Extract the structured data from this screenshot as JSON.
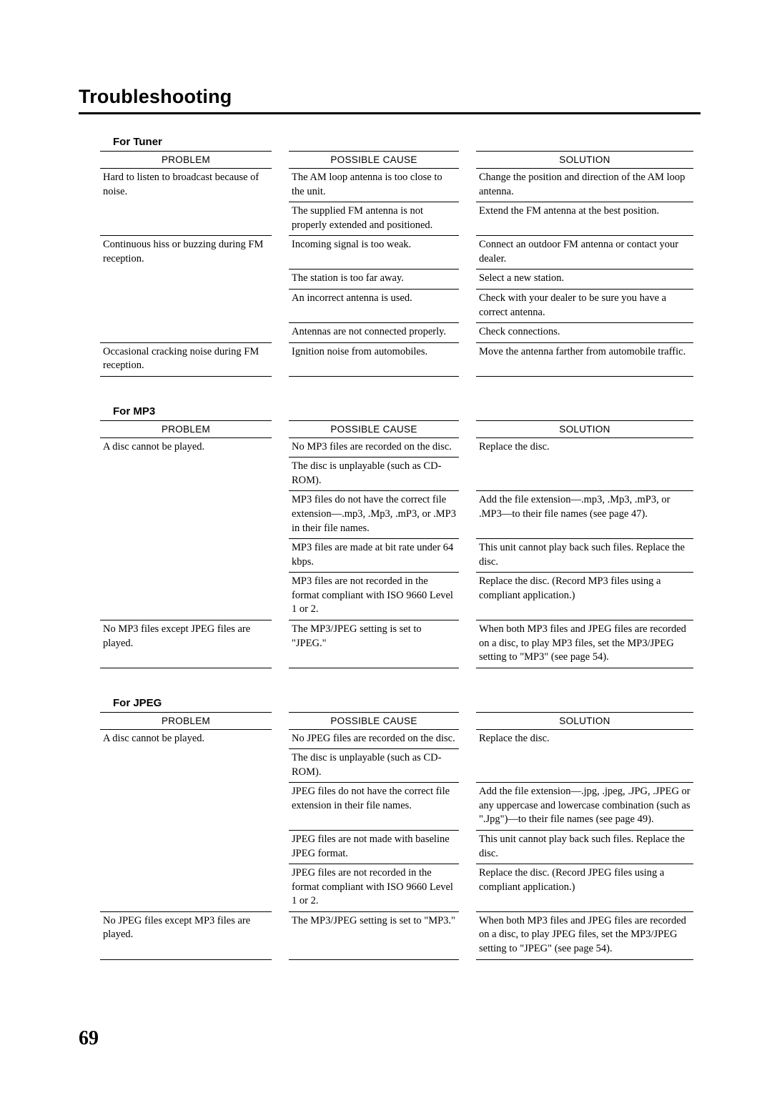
{
  "title": "Troubleshooting",
  "page_number": "69",
  "headers": {
    "problem": "PROBLEM",
    "cause": "POSSIBLE CAUSE",
    "solution": "SOLUTION"
  },
  "tuner": {
    "heading": "For Tuner",
    "rows": [
      {
        "problem": "Hard to listen to broadcast because of noise.",
        "cause": "The AM loop antenna is too close to the unit.",
        "solution": "Change the position and direction of the AM loop antenna."
      },
      {
        "problem": "",
        "cause": "The supplied FM antenna is not properly extended and positioned.",
        "solution": "Extend the FM antenna at the best position."
      },
      {
        "problem": "Continuous hiss or buzzing during FM reception.",
        "cause": "Incoming signal is too weak.",
        "solution": "Connect an outdoor FM antenna or contact your dealer."
      },
      {
        "problem": "",
        "cause": "The station is too far away.",
        "solution": "Select a new station."
      },
      {
        "problem": "",
        "cause": "An incorrect antenna is used.",
        "solution": "Check with your dealer to be sure you have a correct antenna."
      },
      {
        "problem": "",
        "cause": "Antennas are not connected properly.",
        "solution": "Check connections."
      },
      {
        "problem": "Occasional cracking noise during FM reception.",
        "cause": "Ignition noise from automobiles.",
        "solution": "Move the antenna farther from automobile traffic."
      }
    ]
  },
  "mp3": {
    "heading": "For MP3",
    "rows": [
      {
        "problem": "A disc cannot be played.",
        "cause": "No MP3 files are recorded on the disc.",
        "solution": "Replace the disc."
      },
      {
        "problem": "",
        "cause": "The disc is unplayable (such as CD-ROM).",
        "solution": ""
      },
      {
        "problem": "",
        "cause": "MP3 files do not have the correct  file extension—.mp3, .Mp3, .mP3, or .MP3 in their file names.",
        "solution": "Add the file extension—.mp3, .Mp3, .mP3, or .MP3—to their file names (see page 47)."
      },
      {
        "problem": "",
        "cause": "MP3 files are made at bit rate under 64 kbps.",
        "solution": "This unit cannot play back such files. Replace the disc."
      },
      {
        "problem": "",
        "cause": "MP3 files are not recorded in the format compliant with ISO 9660 Level 1 or 2.",
        "solution": "Replace the disc. (Record MP3 files using a compliant application.)"
      },
      {
        "problem": "No MP3 files except JPEG files are played.",
        "cause": "The MP3/JPEG setting is set to \"JPEG.\"",
        "solution": "When both MP3 files and JPEG files are recorded on a disc, to play MP3 files, set the MP3/JPEG setting to \"MP3\" (see page 54)."
      }
    ]
  },
  "jpeg": {
    "heading": "For JPEG",
    "rows": [
      {
        "problem": "A disc cannot be played.",
        "cause": "No JPEG files are recorded on the disc.",
        "solution": "Replace the disc."
      },
      {
        "problem": "",
        "cause": "The disc is unplayable (such as CD-ROM).",
        "solution": ""
      },
      {
        "problem": "",
        "cause": "JPEG files do not have the correct file extension in their file names.",
        "solution": "Add the file extension—.jpg, .jpeg, .JPG, .JPEG or any uppercase and lowercase combination (such as \".Jpg\")—to their file names (see page 49)."
      },
      {
        "problem": "",
        "cause": "JPEG files are not made with baseline JPEG  format.",
        "solution": "This unit cannot play back such files. Replace the disc."
      },
      {
        "problem": "",
        "cause": "JPEG files are not recorded in the format compliant with ISO 9660 Level 1 or 2.",
        "solution": "Replace the disc. (Record JPEG files using a compliant application.)"
      },
      {
        "problem": "No JPEG files except MP3 files are played.",
        "cause": "The MP3/JPEG setting is set to \"MP3.\"",
        "solution": "When both MP3 files and JPEG files are recorded on a disc, to play JPEG files, set the MP3/JPEG setting to \"JPEG\" (see page 54)."
      }
    ]
  },
  "layout": {
    "tuner_problem_spans": [
      2,
      0,
      4,
      0,
      0,
      0,
      1
    ],
    "mp3_problem_spans": [
      5,
      0,
      0,
      0,
      0,
      1
    ],
    "mp3_solution_spans": [
      2,
      0,
      1,
      1,
      1,
      1
    ],
    "jpeg_problem_spans": [
      5,
      0,
      0,
      0,
      0,
      1
    ],
    "jpeg_solution_spans": [
      2,
      0,
      1,
      1,
      1,
      1
    ]
  }
}
